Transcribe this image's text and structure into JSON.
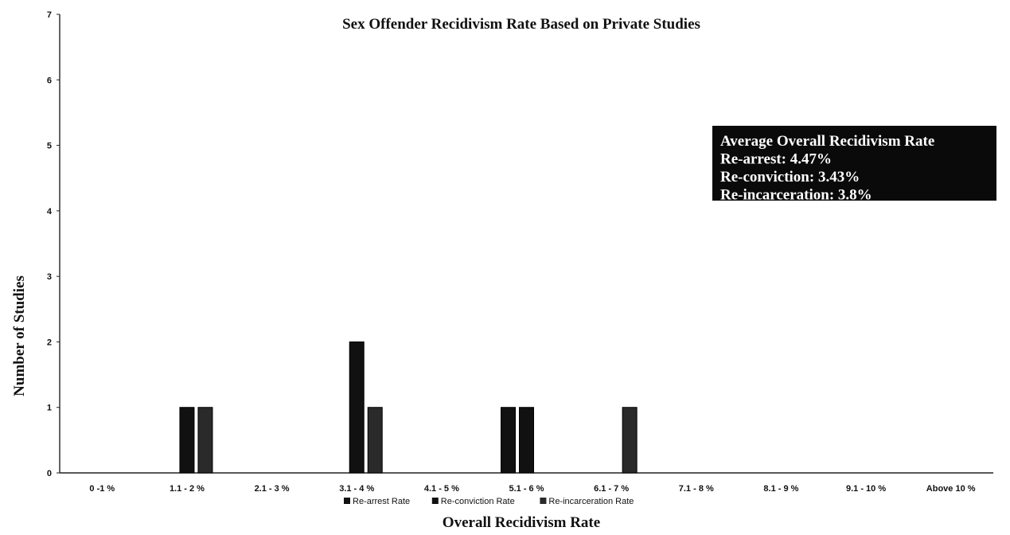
{
  "chart_data": {
    "type": "bar",
    "title": "Sex Offender Recidivism Rate Based on Private Studies",
    "xlabel": "Overall Recidivism Rate",
    "ylabel": "Number of Studies",
    "ylim": [
      0,
      7
    ],
    "yticks": [
      0,
      1,
      2,
      3,
      4,
      5,
      6,
      7
    ],
    "grid": false,
    "legend_position": "bottom",
    "categories": [
      "0 -1 %",
      "1.1 - 2 %",
      "2.1 - 3 %",
      "3.1 - 4 %",
      "4.1 - 5 %",
      "5.1 - 6 %",
      "6.1 - 7 %",
      "7.1 - 8 %",
      "8.1 - 9 %",
      "9.1 - 10 %",
      "Above 10 %"
    ],
    "series": [
      {
        "name": "Re-arrest Rate",
        "values": [
          0,
          0,
          0,
          0,
          0,
          1,
          0,
          0,
          0,
          0,
          0
        ],
        "color": "#111111"
      },
      {
        "name": "Re-conviction Rate",
        "values": [
          0,
          1,
          0,
          2,
          0,
          1,
          0,
          0,
          0,
          0,
          0
        ],
        "color": "#111111"
      },
      {
        "name": "Re-incarceration Rate",
        "values": [
          0,
          1,
          0,
          1,
          0,
          0,
          1,
          0,
          0,
          0,
          0
        ],
        "color": "#2a2a2a"
      }
    ],
    "annotation": {
      "lines": [
        "Average Overall Recidivism Rate",
        "Re-arrest: 4.47%",
        "Re-conviction: 3.43%",
        "Re-incarceration: 3.8%"
      ]
    }
  }
}
